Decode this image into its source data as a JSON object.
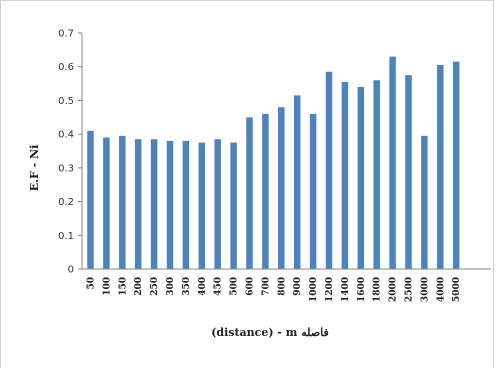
{
  "chart_data": {
    "type": "bar",
    "title": "",
    "xlabel": "(distance) - m فاصله",
    "ylabel": "E.F - Ni",
    "ylim": [
      0,
      0.7
    ],
    "yticks": [
      "0",
      "0.1",
      "0.2",
      "0.3",
      "0.4",
      "0.5",
      "0.6",
      "0.7"
    ],
    "grid": false,
    "legend": "none",
    "bar_color": "#4f81bd",
    "categories": [
      "50",
      "100",
      "150",
      "200",
      "250",
      "300",
      "350",
      "400",
      "450",
      "500",
      "600",
      "700",
      "800",
      "900",
      "1000",
      "1200",
      "1400",
      "1600",
      "1800",
      "2000",
      "2500",
      "3000",
      "4000",
      "5000"
    ],
    "values": [
      0.41,
      0.39,
      0.395,
      0.385,
      0.385,
      0.38,
      0.38,
      0.375,
      0.385,
      0.375,
      0.45,
      0.46,
      0.48,
      0.515,
      0.46,
      0.585,
      0.555,
      0.54,
      0.56,
      0.63,
      0.575,
      0.395,
      0.605,
      0.615
    ]
  }
}
